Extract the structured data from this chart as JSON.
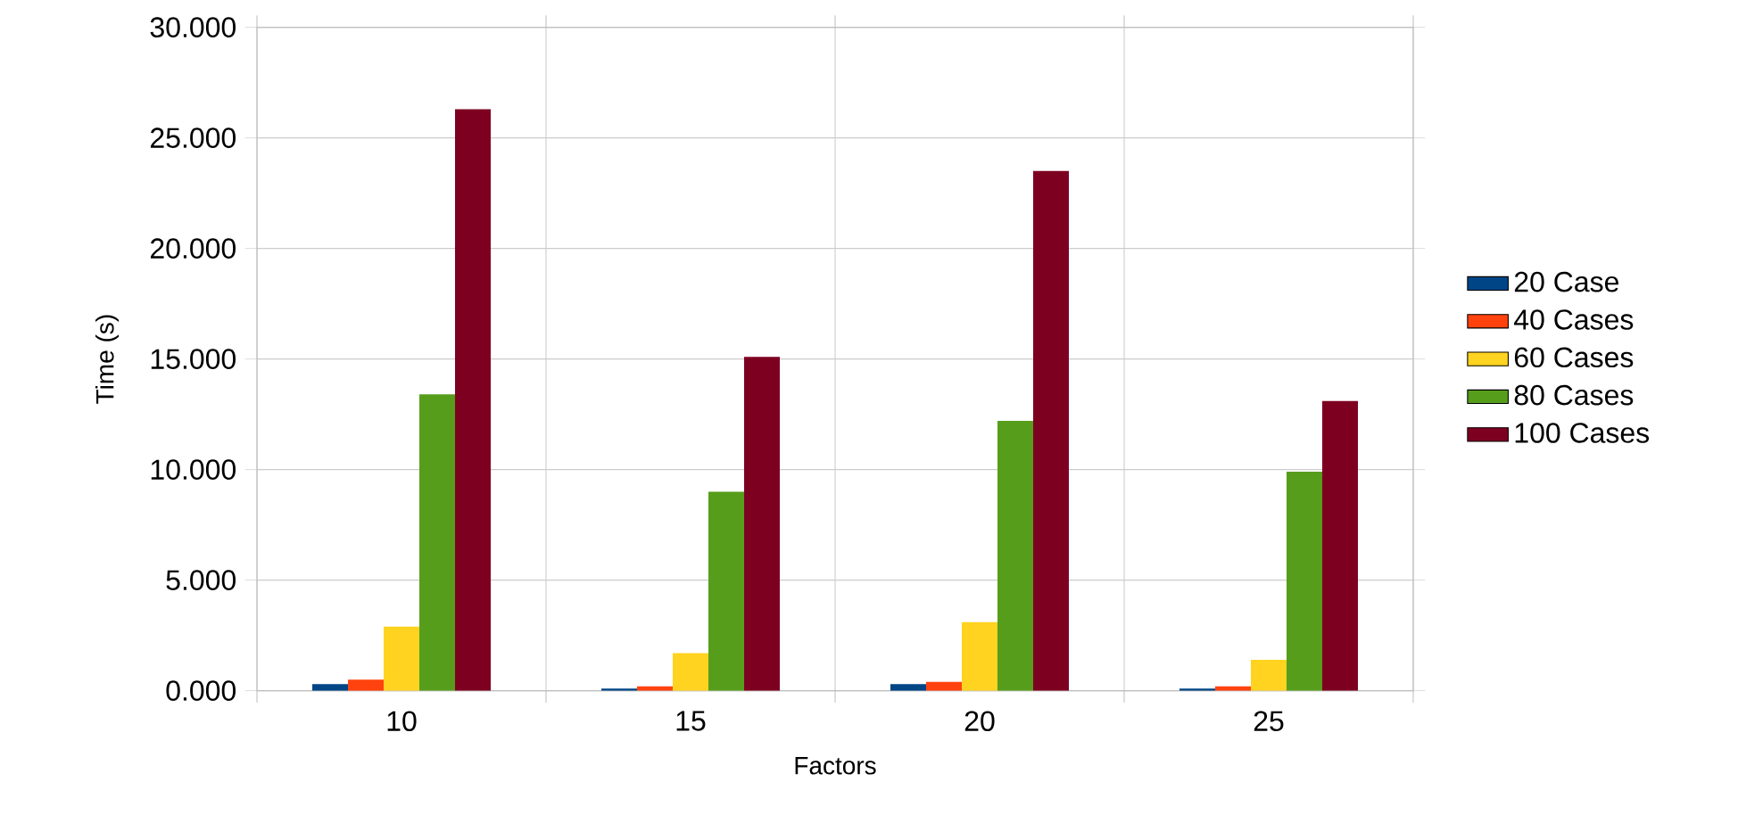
{
  "chart_data": {
    "type": "bar",
    "xlabel": "Factors",
    "ylabel": "Time (s)",
    "categories": [
      "10",
      "15",
      "20",
      "25"
    ],
    "series": [
      {
        "name": "20 Case",
        "color": "#004586",
        "values": [
          0.3,
          0.1,
          0.3,
          0.1
        ]
      },
      {
        "name": "40 Cases",
        "color": "#ff420e",
        "values": [
          0.5,
          0.2,
          0.4,
          0.2
        ]
      },
      {
        "name": "60 Cases",
        "color": "#ffd320",
        "values": [
          2.9,
          1.7,
          3.1,
          1.4
        ]
      },
      {
        "name": "80 Cases",
        "color": "#579d1c",
        "values": [
          13.4,
          9.0,
          12.2,
          9.9
        ]
      },
      {
        "name": "100 Cases",
        "color": "#7e0021",
        "values": [
          26.3,
          15.1,
          23.5,
          13.1
        ]
      }
    ],
    "ylim": [
      0,
      30
    ],
    "yticks": [
      {
        "value": 0,
        "label": "0.000"
      },
      {
        "value": 5,
        "label": "5.000"
      },
      {
        "value": 10,
        "label": "10.000"
      },
      {
        "value": 15,
        "label": "15.000"
      },
      {
        "value": 20,
        "label": "20.000"
      },
      {
        "value": 25,
        "label": "25.000"
      },
      {
        "value": 30,
        "label": "30.000"
      }
    ],
    "grid": "y",
    "legend": "right"
  }
}
